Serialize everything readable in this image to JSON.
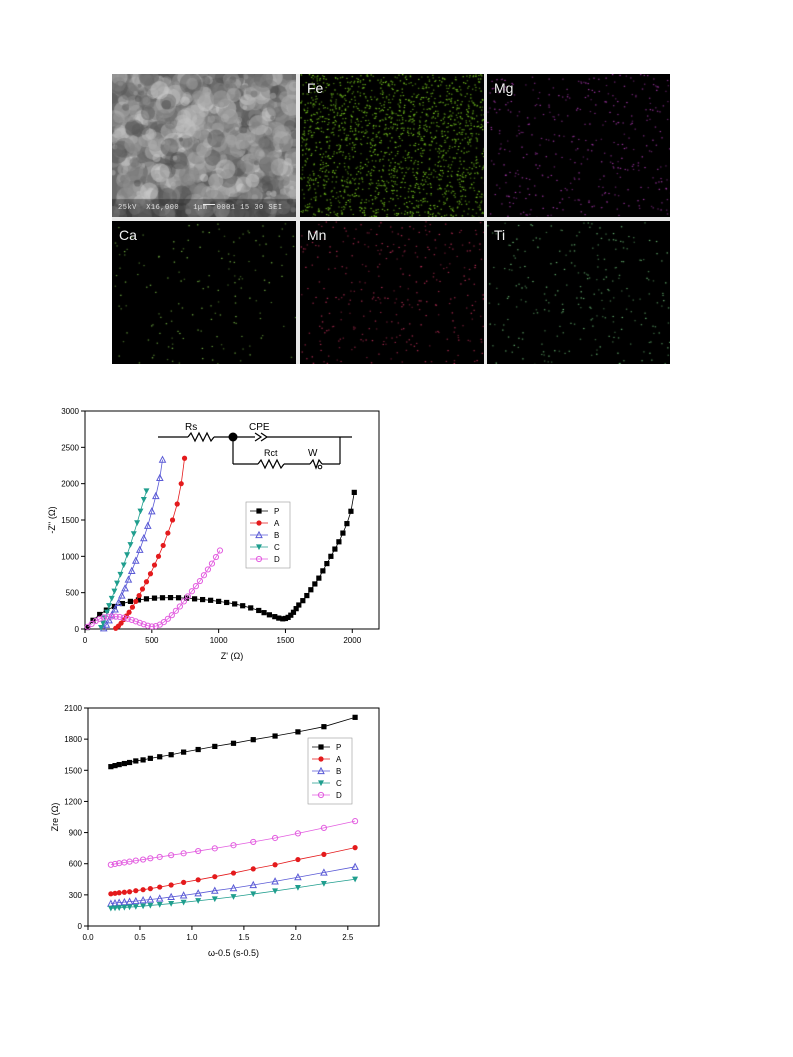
{
  "sem_panels": [
    {
      "label": "",
      "caption": "25kV  X16,000   1μm  0001 15 30 SEI",
      "color": "#bbbbbb",
      "kind": "sem"
    },
    {
      "label": "Fe",
      "color": "#7ed321",
      "kind": "map",
      "density": 0.55
    },
    {
      "label": "Mg",
      "color": "#b03ab5",
      "kind": "map",
      "density": 0.12
    },
    {
      "label": "Ca",
      "color": "#7fc44a",
      "kind": "map",
      "density": 0.05
    },
    {
      "label": "Mn",
      "color": "#c2305a",
      "kind": "map",
      "density": 0.1
    },
    {
      "label": "Ti",
      "color": "#6fc27a",
      "kind": "map",
      "density": 0.08
    }
  ],
  "chart_data": [
    {
      "type": "scatter",
      "ylabel": "-Z'' (Ω)",
      "xlabel": "Z' (Ω)",
      "xlim": [
        0,
        2200
      ],
      "ylim": [
        0,
        3000
      ],
      "xticks": [
        0,
        500,
        1000,
        1500,
        2000
      ],
      "yticks": [
        0,
        500,
        1000,
        1500,
        2000,
        2500,
        3000
      ],
      "legend_placement": "center-right",
      "circuit_labels": {
        "rs": "Rs",
        "cpe": "CPE",
        "rct": "Rct",
        "w": "W"
      },
      "series": [
        {
          "name": "P",
          "color": "#000000",
          "marker": "square-filled",
          "x": [
            15,
            60,
            110,
            160,
            220,
            280,
            340,
            400,
            460,
            520,
            580,
            640,
            700,
            760,
            820,
            880,
            940,
            1000,
            1060,
            1120,
            1180,
            1240,
            1300,
            1340,
            1380,
            1420,
            1450,
            1480,
            1500,
            1520,
            1540,
            1560,
            1580,
            1600,
            1630,
            1660,
            1690,
            1720,
            1750,
            1780,
            1810,
            1840,
            1870,
            1900,
            1930,
            1960,
            1990,
            2015
          ],
          "y": [
            20,
            120,
            200,
            260,
            310,
            350,
            380,
            400,
            415,
            425,
            430,
            432,
            430,
            425,
            415,
            405,
            395,
            380,
            365,
            345,
            320,
            290,
            255,
            225,
            195,
            170,
            150,
            140,
            145,
            160,
            190,
            230,
            280,
            330,
            390,
            460,
            540,
            620,
            700,
            800,
            900,
            1000,
            1100,
            1200,
            1320,
            1450,
            1620,
            1880
          ]
        },
        {
          "name": "A",
          "color": "#e41a1c",
          "marker": "circle-filled",
          "x": [
            230,
            250,
            270,
            290,
            310,
            330,
            355,
            380,
            405,
            430,
            460,
            490,
            520,
            550,
            585,
            620,
            655,
            690,
            720,
            745
          ],
          "y": [
            10,
            40,
            80,
            130,
            180,
            230,
            300,
            380,
            460,
            550,
            650,
            760,
            880,
            1000,
            1150,
            1320,
            1500,
            1720,
            2000,
            2350
          ]
        },
        {
          "name": "B",
          "color": "#5a5ad6",
          "marker": "triangle-open",
          "x": [
            140,
            160,
            180,
            200,
            225,
            250,
            275,
            300,
            325,
            350,
            380,
            410,
            440,
            470,
            500,
            530,
            560,
            580
          ],
          "y": [
            10,
            60,
            120,
            190,
            270,
            360,
            460,
            560,
            680,
            800,
            940,
            1090,
            1250,
            1420,
            1620,
            1830,
            2080,
            2330
          ]
        },
        {
          "name": "C",
          "color": "#1f9e8e",
          "marker": "triangle-down-filled",
          "x": [
            120,
            135,
            150,
            165,
            180,
            200,
            220,
            240,
            265,
            290,
            315,
            340,
            365,
            390,
            415,
            440,
            460
          ],
          "y": [
            20,
            80,
            150,
            230,
            320,
            420,
            520,
            630,
            750,
            880,
            1020,
            1160,
            1310,
            1460,
            1620,
            1780,
            1900
          ]
        },
        {
          "name": "D",
          "color": "#e35ee0",
          "marker": "circle-open",
          "x": [
            20,
            50,
            80,
            110,
            140,
            170,
            200,
            230,
            260,
            290,
            320,
            350,
            380,
            410,
            440,
            470,
            500,
            530,
            560,
            590,
            620,
            650,
            680,
            710,
            740,
            770,
            800,
            830,
            860,
            890,
            920,
            950,
            980,
            1010
          ],
          "y": [
            30,
            70,
            110,
            140,
            160,
            170,
            172,
            170,
            165,
            155,
            140,
            125,
            105,
            85,
            65,
            45,
            35,
            40,
            60,
            95,
            140,
            190,
            250,
            310,
            380,
            450,
            520,
            590,
            660,
            740,
            820,
            900,
            990,
            1080
          ]
        }
      ]
    },
    {
      "type": "scatter",
      "ylabel": "Zre (Ω)",
      "xlabel": "ω-0.5 (s-0.5)",
      "xlim": [
        0.0,
        2.8
      ],
      "ylim": [
        0,
        2100
      ],
      "xticks": [
        0.0,
        0.5,
        1.0,
        1.5,
        2.0,
        2.5
      ],
      "yticks": [
        0,
        300,
        600,
        900,
        1200,
        1500,
        1800,
        2100
      ],
      "legend_placement": "top-right",
      "series": [
        {
          "name": "P",
          "color": "#000000",
          "marker": "square-filled",
          "x": [
            0.22,
            0.26,
            0.3,
            0.35,
            0.4,
            0.46,
            0.53,
            0.6,
            0.69,
            0.8,
            0.92,
            1.06,
            1.22,
            1.4,
            1.59,
            1.8,
            2.02,
            2.27,
            2.57
          ],
          "y": [
            1535,
            1545,
            1555,
            1565,
            1575,
            1590,
            1600,
            1615,
            1630,
            1650,
            1675,
            1700,
            1730,
            1760,
            1795,
            1830,
            1870,
            1920,
            2010
          ]
        },
        {
          "name": "A",
          "color": "#e41a1c",
          "marker": "circle-filled",
          "x": [
            0.22,
            0.26,
            0.3,
            0.35,
            0.4,
            0.46,
            0.53,
            0.6,
            0.69,
            0.8,
            0.92,
            1.06,
            1.22,
            1.4,
            1.59,
            1.8,
            2.02,
            2.27,
            2.57
          ],
          "y": [
            310,
            315,
            320,
            325,
            330,
            340,
            350,
            360,
            375,
            395,
            420,
            445,
            475,
            510,
            550,
            590,
            640,
            690,
            755
          ]
        },
        {
          "name": "B",
          "color": "#5a5ad6",
          "marker": "triangle-open",
          "x": [
            0.22,
            0.26,
            0.3,
            0.35,
            0.4,
            0.46,
            0.53,
            0.6,
            0.69,
            0.8,
            0.92,
            1.06,
            1.22,
            1.4,
            1.59,
            1.8,
            2.02,
            2.27,
            2.57
          ],
          "y": [
            215,
            220,
            225,
            230,
            235,
            240,
            248,
            255,
            265,
            280,
            295,
            315,
            340,
            365,
            395,
            430,
            470,
            515,
            570
          ]
        },
        {
          "name": "C",
          "color": "#1f9e8e",
          "marker": "triangle-down-filled",
          "x": [
            0.22,
            0.26,
            0.3,
            0.35,
            0.4,
            0.46,
            0.53,
            0.6,
            0.69,
            0.8,
            0.92,
            1.06,
            1.22,
            1.4,
            1.59,
            1.8,
            2.02,
            2.27,
            2.57
          ],
          "y": [
            170,
            172,
            175,
            178,
            182,
            186,
            192,
            198,
            206,
            216,
            228,
            243,
            260,
            282,
            308,
            337,
            370,
            408,
            450
          ]
        },
        {
          "name": "D",
          "color": "#e35ee0",
          "marker": "circle-open",
          "x": [
            0.22,
            0.26,
            0.3,
            0.35,
            0.4,
            0.46,
            0.53,
            0.6,
            0.69,
            0.8,
            0.92,
            1.06,
            1.22,
            1.4,
            1.59,
            1.8,
            2.02,
            2.27,
            2.57
          ],
          "y": [
            590,
            598,
            605,
            612,
            620,
            630,
            640,
            652,
            665,
            682,
            700,
            722,
            748,
            778,
            810,
            848,
            892,
            945,
            1010
          ]
        }
      ]
    }
  ]
}
